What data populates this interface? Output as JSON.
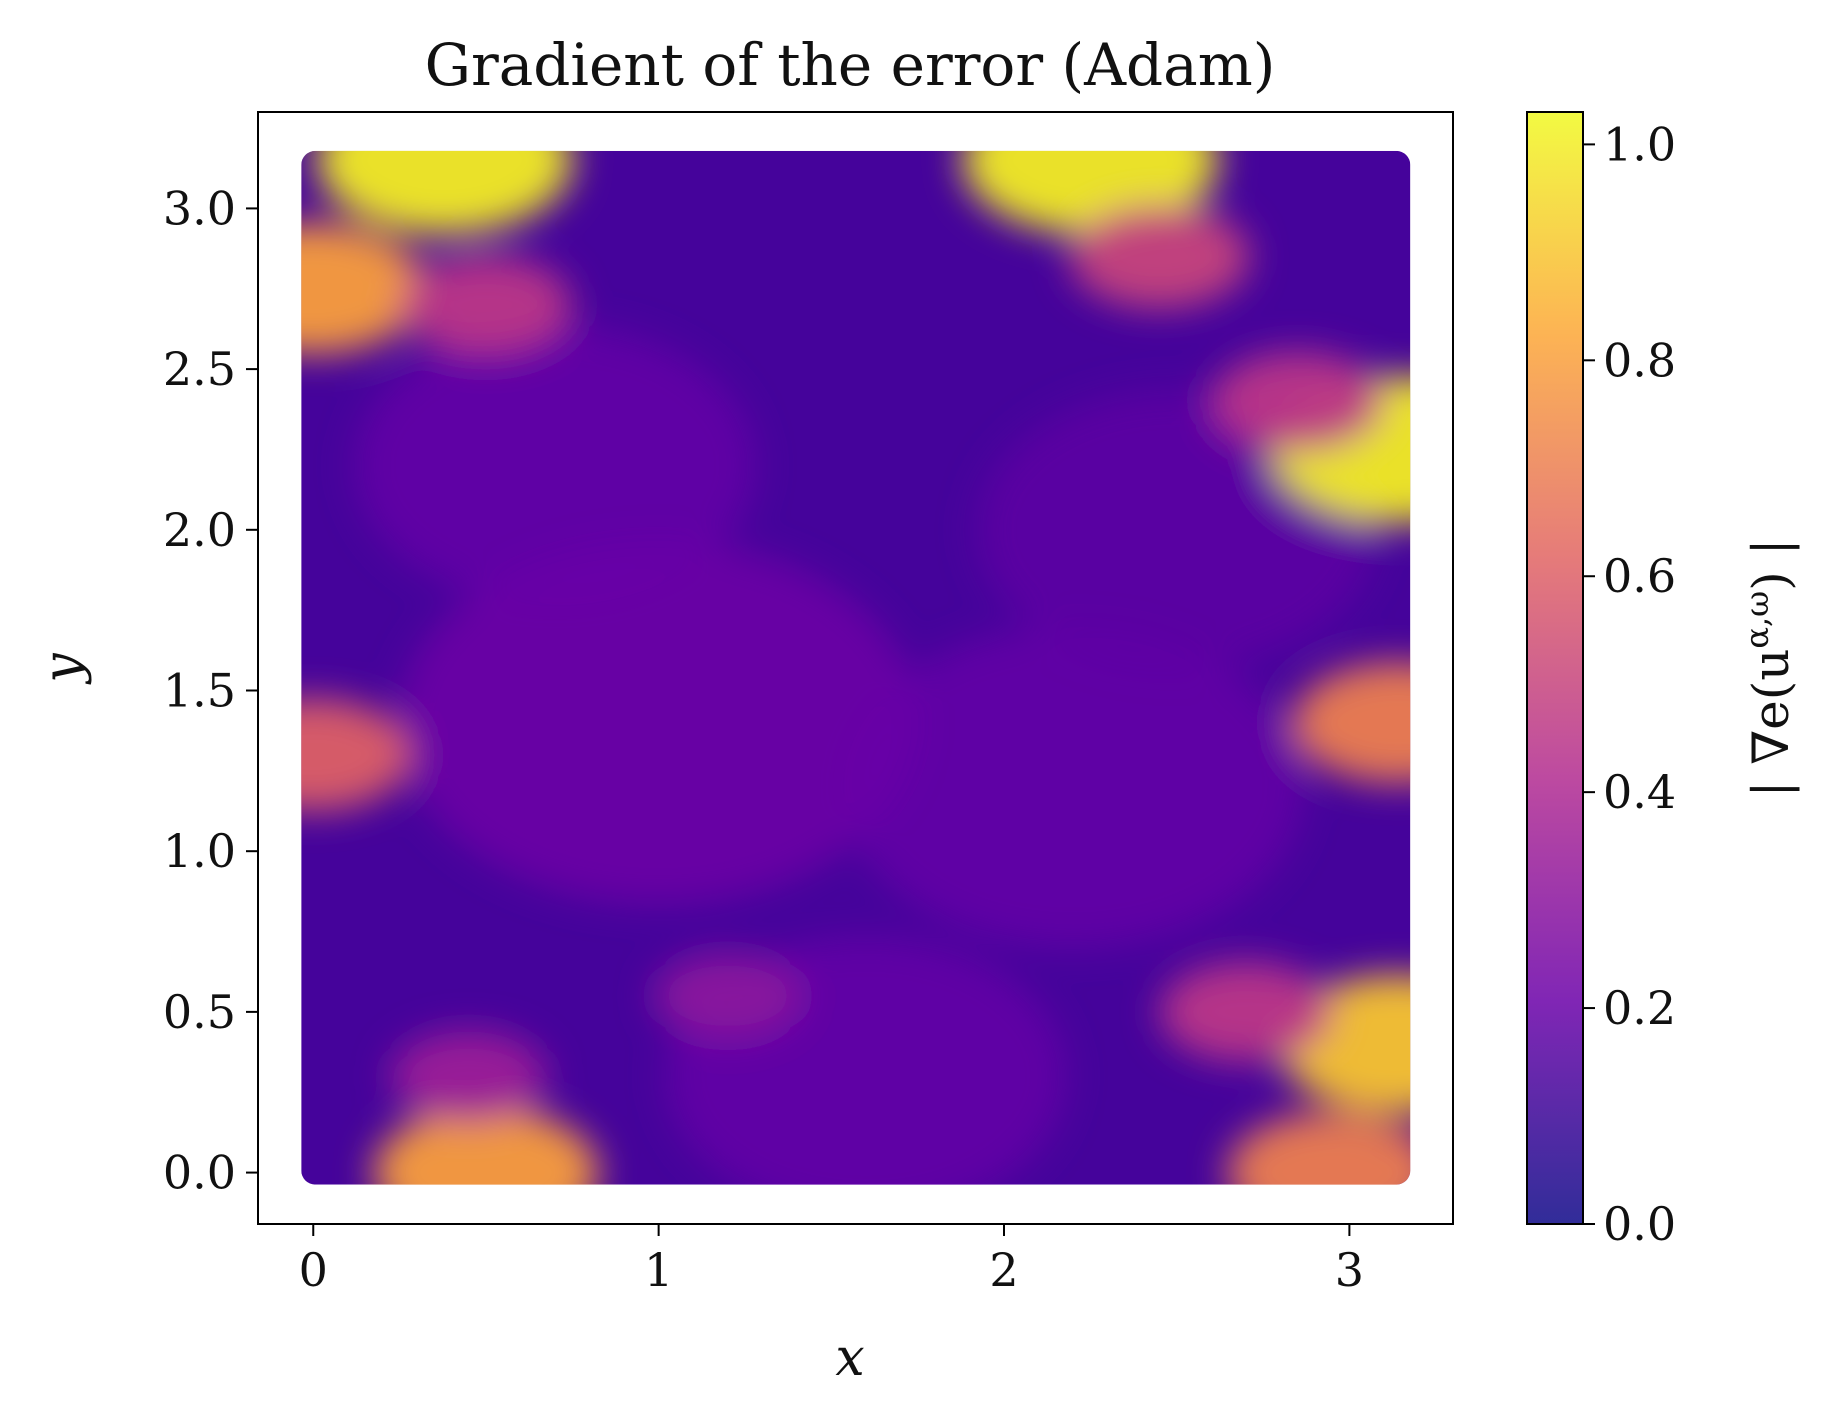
{
  "chart_data": {
    "type": "heatmap",
    "title": "Gradient of the error (Adam)",
    "xlabel": "x",
    "ylabel": "y",
    "xlim": [
      -0.16,
      3.3
    ],
    "ylim": [
      -0.16,
      3.3
    ],
    "x_ticks": [
      {
        "value": 0,
        "label": "0"
      },
      {
        "value": 1,
        "label": "1"
      },
      {
        "value": 2,
        "label": "2"
      },
      {
        "value": 3,
        "label": "3"
      }
    ],
    "y_ticks": [
      {
        "value": 0.0,
        "label": "0.0"
      },
      {
        "value": 0.5,
        "label": "0.5"
      },
      {
        "value": 1.0,
        "label": "1.0"
      },
      {
        "value": 1.5,
        "label": "1.5"
      },
      {
        "value": 2.0,
        "label": "2.0"
      },
      {
        "value": 2.5,
        "label": "2.5"
      },
      {
        "value": 3.0,
        "label": "3.0"
      }
    ],
    "domain": {
      "x": [
        0,
        3.14159
      ],
      "y": [
        0,
        3.14159
      ]
    },
    "grid": false,
    "colormap": "plasma",
    "colormap_stops": [
      "#0d0887",
      "#6a00a8",
      "#b12a90",
      "#e16462",
      "#fca636",
      "#f0f921"
    ],
    "colorbar": {
      "label": "| ∇e(u^{α,ω}) |",
      "label_main": "| ∇e(u",
      "label_sup": "α,ω",
      "label_end": ") |",
      "range": [
        0.0,
        1.03
      ],
      "ticks": [
        {
          "value": 0.0,
          "label": "0.0"
        },
        {
          "value": 0.2,
          "label": "0.2"
        },
        {
          "value": 0.4,
          "label": "0.4"
        },
        {
          "value": 0.6,
          "label": "0.6"
        },
        {
          "value": 0.8,
          "label": "0.8"
        },
        {
          "value": 1.0,
          "label": "1.0"
        }
      ],
      "placement": "right"
    },
    "hotspots": [
      {
        "x": 0.38,
        "y": 3.15,
        "value": 1.0
      },
      {
        "x": 2.25,
        "y": 3.15,
        "value": 1.0
      },
      {
        "x": 3.14,
        "y": 2.25,
        "value": 1.0
      },
      {
        "x": 3.14,
        "y": 0.4,
        "value": 0.9
      },
      {
        "x": 0.0,
        "y": 2.75,
        "value": 0.8
      },
      {
        "x": 0.5,
        "y": 0.0,
        "value": 0.8
      },
      {
        "x": 2.95,
        "y": 0.0,
        "value": 0.7
      },
      {
        "x": 3.14,
        "y": 1.4,
        "value": 0.7
      },
      {
        "x": 0.0,
        "y": 1.3,
        "value": 0.6
      },
      {
        "x": 0.5,
        "y": 2.7,
        "value": 0.45
      },
      {
        "x": 2.45,
        "y": 2.85,
        "value": 0.5
      },
      {
        "x": 2.85,
        "y": 2.4,
        "value": 0.45
      },
      {
        "x": 2.7,
        "y": 0.5,
        "value": 0.45
      },
      {
        "x": 0.45,
        "y": 0.3,
        "value": 0.35
      },
      {
        "x": 1.2,
        "y": 0.55,
        "value": 0.3
      }
    ]
  }
}
